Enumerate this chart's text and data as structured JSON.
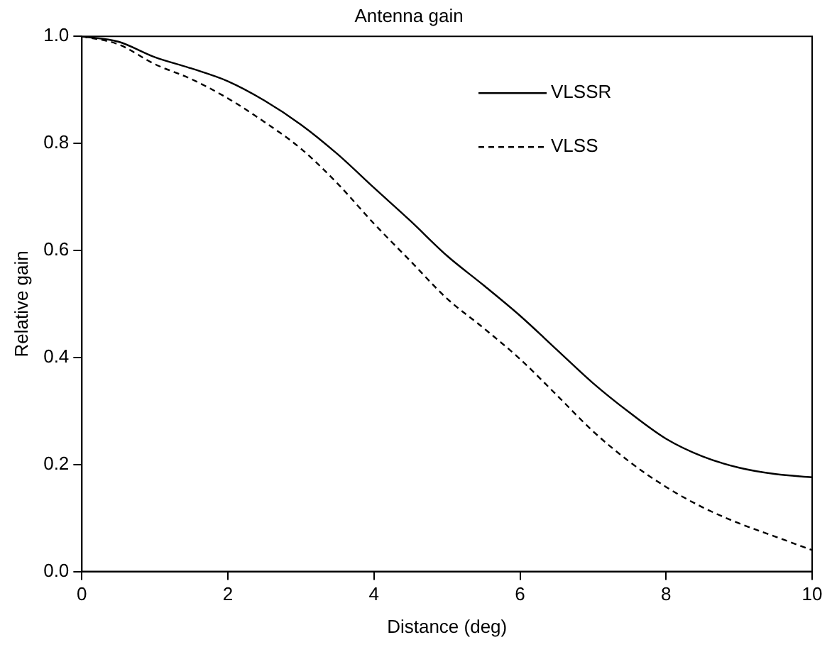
{
  "chart_data": {
    "type": "line",
    "title": "Antenna gain",
    "xlabel": "Distance (deg)",
    "ylabel": "Relative gain",
    "x": [
      0,
      0.5,
      1,
      1.5,
      2,
      2.5,
      3,
      3.5,
      4,
      4.5,
      5,
      5.5,
      6,
      6.5,
      7,
      7.5,
      8,
      8.5,
      9,
      9.5,
      10
    ],
    "series": [
      {
        "name": "VLSSR",
        "color": "#000000",
        "line_style": "solid",
        "values": [
          1,
          0.99,
          0.961,
          0.94,
          0.916,
          0.88,
          0.835,
          0.78,
          0.717,
          0.655,
          0.59,
          0.535,
          0.478,
          0.415,
          0.352,
          0.297,
          0.248,
          0.215,
          0.194,
          0.182,
          0.176
        ]
      },
      {
        "name": "VLSS",
        "color": "#000000",
        "line_style": "dashed",
        "values": [
          1,
          0.985,
          0.948,
          0.92,
          0.884,
          0.84,
          0.79,
          0.725,
          0.65,
          0.58,
          0.51,
          0.455,
          0.397,
          0.33,
          0.262,
          0.205,
          0.158,
          0.12,
          0.09,
          0.065,
          0.04
        ]
      }
    ],
    "xlim": [
      0,
      10
    ],
    "xticks": [
      0,
      2,
      4,
      6,
      8,
      10
    ],
    "ylim": [
      0,
      1
    ],
    "yticks": [
      {
        "value": 0,
        "label": "0.0"
      },
      {
        "value": 0.2,
        "label": "0.2"
      },
      {
        "value": 0.4,
        "label": "0.4"
      },
      {
        "value": 0.6,
        "label": "0.6"
      },
      {
        "value": 0.8,
        "label": "0.8"
      },
      {
        "value": 1,
        "label": "1.0"
      }
    ],
    "grid": false,
    "legend": "top right",
    "marker": "none"
  }
}
